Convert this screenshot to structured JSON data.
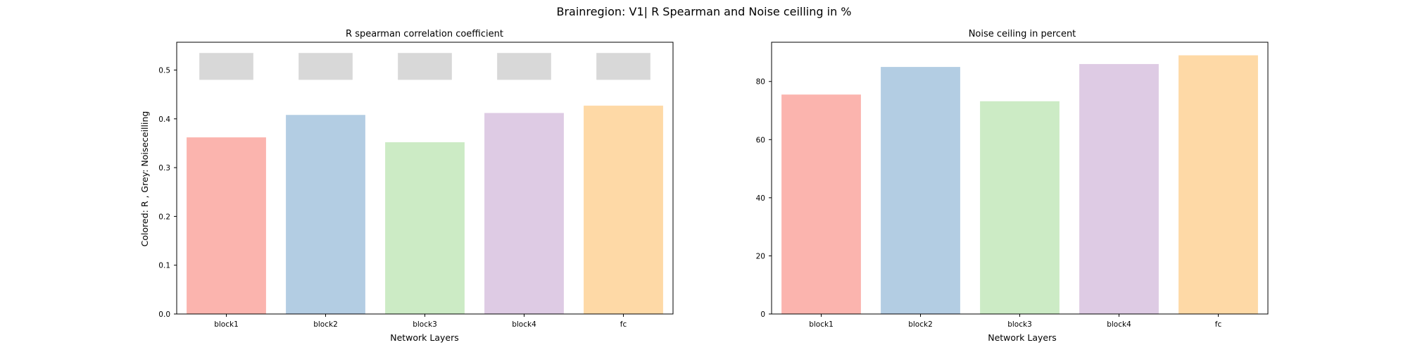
{
  "figure_title": "Brainregion: V1| R Spearman and Noise ceilling in %",
  "chart_data": [
    {
      "type": "bar",
      "title": "R spearman correlation coefficient",
      "xlabel": "Network Layers",
      "ylabel": "Colored: R , Grey: Noiseceilling",
      "categories": [
        "block1",
        "block2",
        "block3",
        "block4",
        "fc"
      ],
      "series": [
        {
          "values": [
            0.362,
            0.408,
            0.352,
            0.412,
            0.427
          ]
        }
      ],
      "noise_ceiling_range": [
        0.48,
        0.535
      ],
      "noise_ceiling_color": "#d8d8d8",
      "ylim": [
        0,
        0.557
      ],
      "yticks": [
        0.0,
        0.1,
        0.2,
        0.3,
        0.4,
        0.5
      ],
      "ytick_labels": [
        "0.0",
        "0.1",
        "0.2",
        "0.3",
        "0.4",
        "0.5"
      ],
      "colors": [
        "#fbb4ae",
        "#b3cde3",
        "#ccebc5",
        "#decbe4",
        "#fed9a6"
      ],
      "grid": false,
      "legend": "none"
    },
    {
      "type": "bar",
      "title": "Noise ceiling in percent",
      "xlabel": "Network Layers",
      "ylabel": "",
      "categories": [
        "block1",
        "block2",
        "block3",
        "block4",
        "fc"
      ],
      "series": [
        {
          "values": [
            75.5,
            85.0,
            73.2,
            86.0,
            89.0
          ]
        }
      ],
      "ylim": [
        0,
        93.5
      ],
      "yticks": [
        0,
        20,
        40,
        60,
        80
      ],
      "ytick_labels": [
        "0",
        "20",
        "40",
        "60",
        "80"
      ],
      "colors": [
        "#fbb4ae",
        "#b3cde3",
        "#ccebc5",
        "#decbe4",
        "#fed9a6"
      ],
      "grid": false,
      "legend": "none"
    }
  ]
}
